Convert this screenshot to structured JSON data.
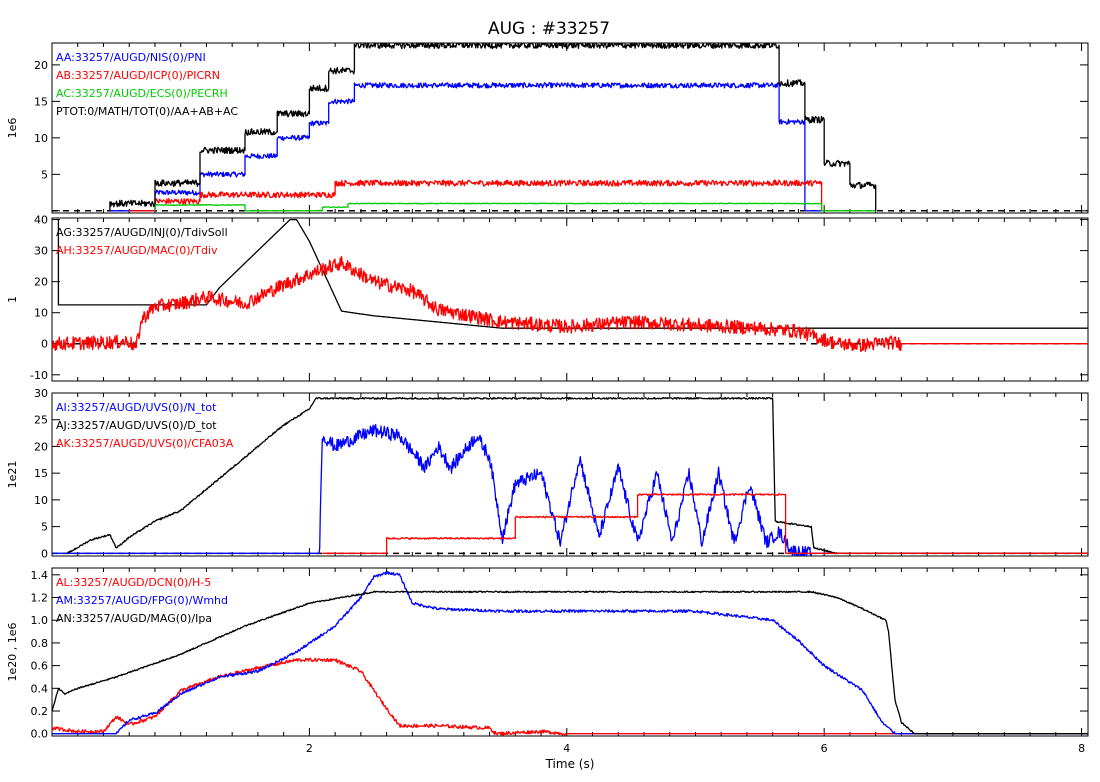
{
  "title": "AUG : #33257",
  "xlabel": "Time (s)",
  "x_tick_labels": [
    "2",
    "4",
    "6",
    "8"
  ],
  "colors": {
    "black": "#000000",
    "blue": "#0000ff",
    "red": "#ff0000",
    "green": "#00cc00",
    "purple": "#800080"
  },
  "chart_data": [
    {
      "type": "line",
      "ylabel": "1e6",
      "xlim": [
        0,
        8.05
      ],
      "ylim": [
        -0.3,
        23
      ],
      "y_ticks": [
        0,
        5,
        10,
        15,
        20
      ],
      "y_tick_labels": [
        "",
        "5",
        "10",
        "15",
        "20"
      ],
      "zero_line": true,
      "legend": "top-left",
      "series": [
        {
          "name": "AA:33257/AUGD/NIS(0)/PNI",
          "color": "#0000ff",
          "noise": 0.35,
          "x": [
            0.45,
            0.8,
            0.8,
            1.15,
            1.15,
            1.5,
            1.5,
            1.75,
            1.75,
            2.0,
            2.0,
            2.15,
            2.15,
            2.35,
            2.35,
            5.65,
            5.65,
            5.85,
            5.85,
            6.0
          ],
          "y": [
            0,
            0,
            2.5,
            2.5,
            5,
            5,
            7.5,
            7.5,
            10,
            10,
            12,
            12,
            15,
            15,
            17.2,
            17.2,
            12.2,
            12.2,
            0,
            0
          ]
        },
        {
          "name": "AB:33257/AUGD/ICP(0)/PICRN",
          "color": "#ff0000",
          "noise": 0.4,
          "x": [
            0.6,
            0.8,
            0.8,
            1.15,
            1.15,
            2.2,
            2.2,
            5.98,
            5.98,
            6.1
          ],
          "y": [
            0,
            0,
            1.3,
            1.3,
            2.2,
            2.2,
            3.8,
            3.8,
            0,
            0
          ]
        },
        {
          "name": "AC:33257/AUGD/ECS(0)/PECRH",
          "color": "#00cc00",
          "noise": 0.05,
          "x": [
            0.8,
            0.8,
            1.5,
            1.5,
            2.1,
            2.1,
            2.3,
            2.3,
            5.98,
            5.98,
            6.4
          ],
          "y": [
            0,
            0.8,
            0.8,
            0,
            0,
            0.5,
            0.5,
            1.0,
            1.0,
            0,
            0
          ]
        },
        {
          "name": "PTOT:0/MATH/TOT(0)/AA+AB+AC",
          "color": "#000000",
          "noise": 0.45,
          "x": [
            0.45,
            0.45,
            0.8,
            0.8,
            1.15,
            1.15,
            1.5,
            1.5,
            1.75,
            1.75,
            2.0,
            2.0,
            2.15,
            2.15,
            2.35,
            2.35,
            5.65,
            5.65,
            5.85,
            5.85,
            6.0,
            6.0,
            6.2,
            6.2,
            6.4,
            6.4
          ],
          "y": [
            0,
            1.0,
            1.0,
            3.8,
            3.8,
            8.3,
            8.3,
            10.8,
            10.8,
            13.3,
            13.3,
            16.8,
            16.8,
            19.2,
            19.2,
            22.7,
            22.7,
            17.5,
            17.5,
            12.5,
            12.5,
            6.5,
            6.5,
            3.5,
            3.5,
            0
          ]
        }
      ]
    },
    {
      "type": "line",
      "ylabel": "1",
      "xlim": [
        0,
        8.05
      ],
      "ylim": [
        -12,
        40.5
      ],
      "y_ticks": [
        -10,
        0,
        10,
        20,
        30,
        40
      ],
      "y_tick_labels": [
        "-10",
        "0",
        "10",
        "20",
        "30",
        "40"
      ],
      "zero_line": true,
      "legend": "top-left",
      "series": [
        {
          "name": "AG:33257/AUGD/INJ(0)/TdivSoll",
          "color": "#000000",
          "noise": 0,
          "x": [
            0.05,
            0.05,
            1.2,
            1.2,
            1.3,
            1.85,
            1.9,
            2.0,
            2.25,
            2.5,
            3.5,
            8.05
          ],
          "y": [
            40,
            12.5,
            12.5,
            12.5,
            18,
            40,
            40,
            33,
            10.5,
            9,
            5,
            5
          ]
        },
        {
          "name": "AH:33257/AUGD/MAC(0)/Tdiv",
          "color": "#ff0000",
          "noise": 2.2,
          "x": [
            0,
            0.5,
            0.6,
            0.65,
            0.7,
            0.8,
            1.0,
            1.2,
            1.5,
            1.8,
            2.1,
            2.25,
            2.5,
            2.8,
            3.0,
            3.5,
            4.0,
            4.5,
            5.0,
            5.5,
            5.8,
            6.1,
            6.3,
            6.5,
            6.6,
            7.0,
            8.05
          ],
          "y": [
            0,
            0.5,
            0.8,
            -1.5,
            8,
            12,
            13,
            15,
            13,
            19,
            24,
            26,
            20,
            17,
            11,
            7,
            5.5,
            7,
            6,
            5,
            4,
            0,
            -0.5,
            0.5,
            0,
            0,
            0
          ]
        }
      ]
    },
    {
      "type": "line",
      "ylabel": "1e21",
      "xlim": [
        0,
        8.05
      ],
      "ylim": [
        -0.5,
        30
      ],
      "y_ticks": [
        0,
        5,
        10,
        15,
        20,
        25,
        30
      ],
      "y_tick_labels": [
        "0",
        "5",
        "10",
        "15",
        "20",
        "25",
        "30"
      ],
      "zero_line": true,
      "legend": "top-left",
      "series": [
        {
          "name": "AI:33257/AUGD/UVS(0)/N_tot",
          "color": "#0000ff",
          "noise": 1.2,
          "x": [
            0,
            2.07,
            2.08,
            2.1,
            2.2,
            2.5,
            2.7,
            2.9,
            3.0,
            3.1,
            3.3,
            3.4,
            3.5,
            3.6,
            3.8,
            3.95,
            4.1,
            4.25,
            4.4,
            4.55,
            4.7,
            4.82,
            4.95,
            5.05,
            5.18,
            5.3,
            5.42,
            5.55,
            5.65,
            5.75,
            5.9,
            6.1,
            8.05
          ],
          "y": [
            0,
            0,
            2,
            22,
            20,
            23,
            22,
            16,
            20,
            16,
            22,
            18,
            3,
            13,
            15,
            2,
            18,
            3,
            16,
            2,
            15,
            2,
            15,
            2,
            15,
            2,
            13,
            2,
            4,
            0.5,
            0,
            0,
            0
          ]
        },
        {
          "name": "AJ:33257/AUGD/UVS(0)/D_tot",
          "color": "#000000",
          "noise": 0.15,
          "x": [
            0.12,
            0.3,
            0.45,
            0.5,
            0.6,
            0.8,
            1.0,
            1.2,
            1.5,
            1.8,
            2.0,
            2.05,
            5.6,
            5.62,
            5.75,
            5.9,
            5.92,
            6.1,
            8.05
          ],
          "y": [
            0,
            2.5,
            3.5,
            1,
            3,
            6,
            8,
            12,
            18,
            24,
            27,
            29,
            29,
            6,
            5.5,
            5,
            1,
            0,
            0
          ]
        },
        {
          "name": "AK:33257/AUGD/UVS(0)/CFA03A",
          "color": "#ff0000",
          "noise": 0.15,
          "x": [
            2.1,
            2.6,
            2.6,
            3.6,
            3.6,
            4.55,
            4.55,
            5.7,
            5.7,
            8.05
          ],
          "y": [
            0,
            0,
            2.8,
            2.8,
            6.8,
            6.8,
            11,
            11,
            0,
            0
          ]
        }
      ]
    },
    {
      "type": "line",
      "ylabel": "1e20 , 1e6",
      "xlim": [
        0,
        8.05
      ],
      "ylim": [
        -0.02,
        1.46
      ],
      "y_ticks": [
        0,
        0.2,
        0.4,
        0.6,
        0.8,
        1.0,
        1.2,
        1.4
      ],
      "y_tick_labels": [
        "0.0",
        "0.2",
        "0.4",
        "0.6",
        "0.8",
        "1.0",
        "1.2",
        "1.4"
      ],
      "zero_line": false,
      "legend": "top-left",
      "series": [
        {
          "name": "AL:33257/AUGD/DCN(0)/H-5",
          "color": "#ff0000",
          "noise": 0.015,
          "x": [
            0,
            0.2,
            0.4,
            0.5,
            0.6,
            0.8,
            1.0,
            1.3,
            1.6,
            1.9,
            2.2,
            2.4,
            2.55,
            2.7,
            3.0,
            3.4,
            3.45,
            3.8,
            4.0,
            8.05
          ],
          "y": [
            0.05,
            0.02,
            0.02,
            0.15,
            0.08,
            0.15,
            0.38,
            0.5,
            0.58,
            0.65,
            0.65,
            0.55,
            0.3,
            0.07,
            0.07,
            0.05,
            0,
            0.02,
            0,
            0
          ]
        },
        {
          "name": "AM:33257/AUGD/FPG(0)/Wmhd",
          "color": "#0000ff",
          "noise": 0.012,
          "x": [
            0,
            0.5,
            0.6,
            0.8,
            1.0,
            1.3,
            1.6,
            1.9,
            2.2,
            2.4,
            2.5,
            2.6,
            2.7,
            2.8,
            3.0,
            3.5,
            4.0,
            5.0,
            5.6,
            5.8,
            6.0,
            6.3,
            6.45,
            6.55,
            8.05
          ],
          "y": [
            0,
            0,
            0.12,
            0.18,
            0.35,
            0.5,
            0.55,
            0.72,
            0.95,
            1.2,
            1.38,
            1.42,
            1.4,
            1.15,
            1.1,
            1.08,
            1.08,
            1.08,
            1.0,
            0.82,
            0.6,
            0.38,
            0.1,
            0,
            0
          ]
        },
        {
          "name": "AN:33257/AUGD/MAG(0)/Ipa",
          "color": "#000000",
          "noise": 0.006,
          "x": [
            0,
            0.05,
            0.1,
            0.2,
            0.5,
            1.0,
            1.5,
            2.0,
            2.5,
            5.9,
            6.1,
            6.3,
            6.48,
            6.5,
            6.55,
            6.6,
            6.7,
            8.05
          ],
          "y": [
            0.2,
            0.4,
            0.35,
            0.4,
            0.5,
            0.7,
            0.95,
            1.15,
            1.25,
            1.25,
            1.2,
            1.1,
            1.0,
            0.9,
            0.3,
            0.1,
            0,
            0
          ]
        }
      ]
    }
  ]
}
